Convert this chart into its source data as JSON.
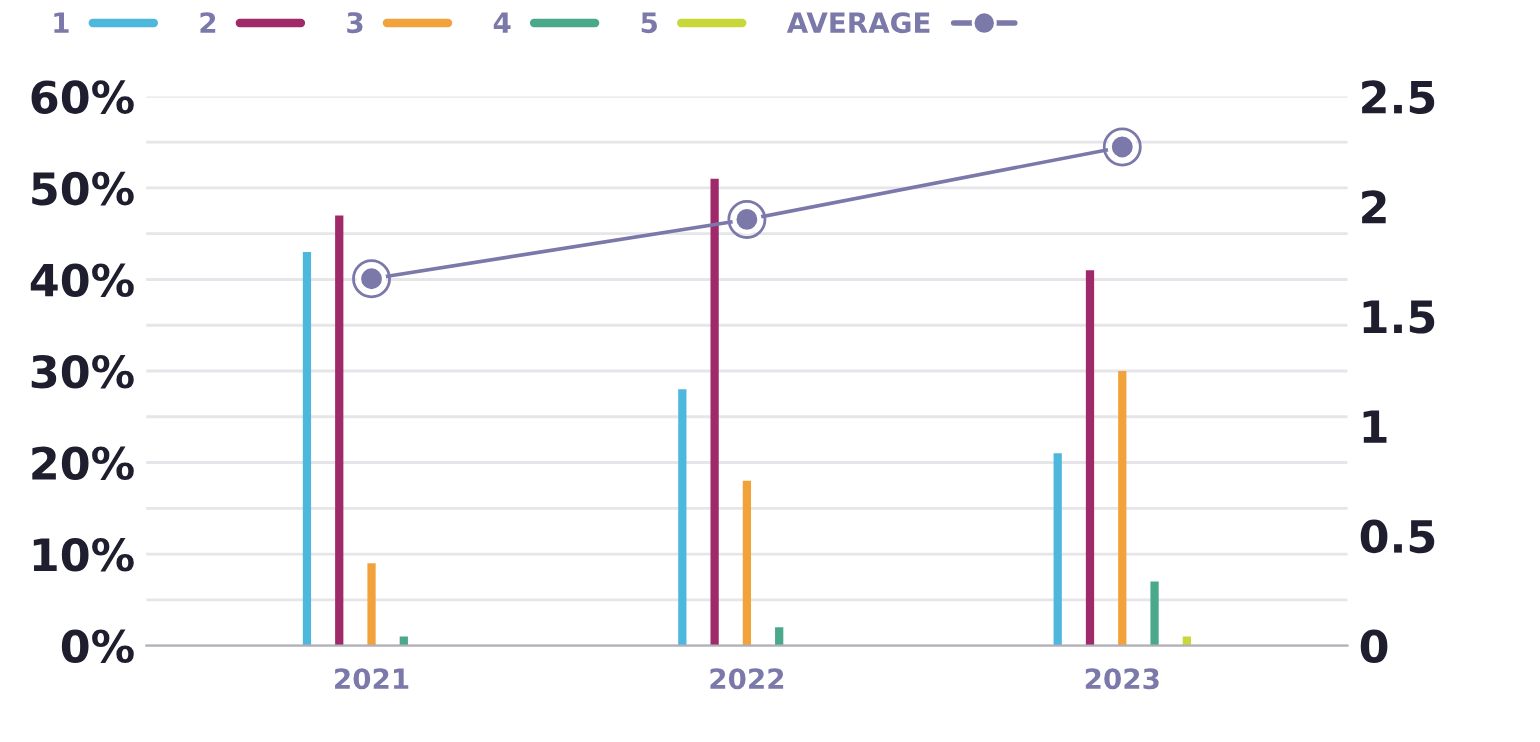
{
  "chart_data": {
    "type": "bar",
    "categories": [
      "2021",
      "2022",
      "2023"
    ],
    "series": [
      {
        "name": "1",
        "color": "#4eb8dc",
        "values": [
          43,
          28,
          21
        ]
      },
      {
        "name": "2",
        "color": "#a0296a",
        "values": [
          47,
          51,
          41
        ]
      },
      {
        "name": "3",
        "color": "#f2a23a",
        "values": [
          9,
          18,
          30
        ]
      },
      {
        "name": "4",
        "color": "#4aa98a",
        "values": [
          1,
          2,
          7
        ]
      },
      {
        "name": "5",
        "color": "#c8d83a",
        "values": [
          null,
          null,
          1
        ]
      },
      {
        "name": "AVERAGE",
        "type": "line",
        "axis": "y2",
        "color": "#7b78aa",
        "marker": "circle",
        "values": [
          1.67,
          1.94,
          2.27
        ]
      }
    ],
    "ylim": [
      0,
      60
    ],
    "yticks": [
      {
        "value": 0,
        "label": "0%"
      },
      {
        "value": 5,
        "label": null
      },
      {
        "value": 10,
        "label": "10%"
      },
      {
        "value": 15,
        "label": null
      },
      {
        "value": 20,
        "label": "20%"
      },
      {
        "value": 25,
        "label": null
      },
      {
        "value": 30,
        "label": "30%"
      },
      {
        "value": 35,
        "label": null
      },
      {
        "value": 40,
        "label": "40%"
      },
      {
        "value": 45,
        "label": null
      },
      {
        "value": 50,
        "label": "50%"
      },
      {
        "value": 55,
        "label": null
      },
      {
        "value": 60,
        "label": "60%"
      }
    ],
    "y2lim": [
      0,
      2.5
    ],
    "y2ticks": [
      0,
      0.5,
      1,
      1.5,
      2,
      2.5
    ],
    "grid": "y",
    "legend": "top left"
  }
}
